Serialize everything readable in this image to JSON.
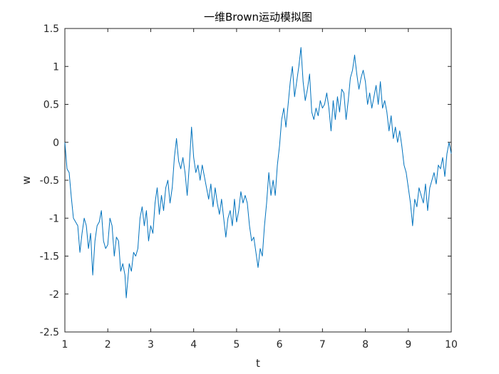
{
  "chart_data": {
    "type": "line",
    "title": "一维Brown运动模拟图",
    "xlabel": "t",
    "ylabel": "w",
    "xlim": [
      1,
      10
    ],
    "ylim": [
      -2.5,
      1.5
    ],
    "xticks": [
      1,
      2,
      3,
      4,
      5,
      6,
      7,
      8,
      9,
      10
    ],
    "yticks": [
      -2.5,
      -2,
      -1.5,
      -1,
      -0.5,
      0,
      0.5,
      1,
      1.5
    ],
    "ytick_labels": [
      "-2.5",
      "-2",
      "-1.5",
      "-1",
      "-0.5",
      "0",
      "0.5",
      "1",
      "1.5"
    ],
    "xtick_labels": [
      "1",
      "2",
      "3",
      "4",
      "5",
      "6",
      "7",
      "8",
      "9",
      "10"
    ],
    "grid": false,
    "series": [
      {
        "color": "#0072BD",
        "points": [
          [
            1.0,
            0.0
          ],
          [
            1.05,
            -0.35
          ],
          [
            1.1,
            -0.4
          ],
          [
            1.15,
            -0.72
          ],
          [
            1.2,
            -1.0
          ],
          [
            1.25,
            -1.05
          ],
          [
            1.3,
            -1.1
          ],
          [
            1.35,
            -1.45
          ],
          [
            1.4,
            -1.2
          ],
          [
            1.45,
            -1.0
          ],
          [
            1.5,
            -1.1
          ],
          [
            1.55,
            -1.4
          ],
          [
            1.6,
            -1.2
          ],
          [
            1.65,
            -1.75
          ],
          [
            1.7,
            -1.3
          ],
          [
            1.75,
            -1.1
          ],
          [
            1.8,
            -1.05
          ],
          [
            1.85,
            -0.9
          ],
          [
            1.9,
            -1.3
          ],
          [
            1.95,
            -1.4
          ],
          [
            2.0,
            -1.35
          ],
          [
            2.05,
            -1.0
          ],
          [
            2.1,
            -1.1
          ],
          [
            2.15,
            -1.5
          ],
          [
            2.2,
            -1.25
          ],
          [
            2.25,
            -1.3
          ],
          [
            2.3,
            -1.7
          ],
          [
            2.35,
            -1.6
          ],
          [
            2.4,
            -1.75
          ],
          [
            2.43,
            -2.05
          ],
          [
            2.5,
            -1.6
          ],
          [
            2.55,
            -1.7
          ],
          [
            2.6,
            -1.45
          ],
          [
            2.65,
            -1.5
          ],
          [
            2.7,
            -1.4
          ],
          [
            2.75,
            -1.0
          ],
          [
            2.8,
            -0.85
          ],
          [
            2.85,
            -1.1
          ],
          [
            2.9,
            -0.9
          ],
          [
            2.95,
            -1.3
          ],
          [
            3.0,
            -1.1
          ],
          [
            3.05,
            -1.2
          ],
          [
            3.1,
            -0.8
          ],
          [
            3.15,
            -0.6
          ],
          [
            3.2,
            -0.95
          ],
          [
            3.25,
            -0.7
          ],
          [
            3.3,
            -0.9
          ],
          [
            3.35,
            -0.6
          ],
          [
            3.4,
            -0.5
          ],
          [
            3.45,
            -0.8
          ],
          [
            3.5,
            -0.6
          ],
          [
            3.55,
            -0.2
          ],
          [
            3.6,
            0.05
          ],
          [
            3.65,
            -0.25
          ],
          [
            3.7,
            -0.35
          ],
          [
            3.75,
            -0.2
          ],
          [
            3.8,
            -0.4
          ],
          [
            3.85,
            -0.7
          ],
          [
            3.9,
            -0.3
          ],
          [
            3.95,
            0.2
          ],
          [
            4.0,
            -0.2
          ],
          [
            4.05,
            -0.4
          ],
          [
            4.1,
            -0.3
          ],
          [
            4.15,
            -0.5
          ],
          [
            4.2,
            -0.3
          ],
          [
            4.25,
            -0.45
          ],
          [
            4.3,
            -0.6
          ],
          [
            4.35,
            -0.75
          ],
          [
            4.4,
            -0.55
          ],
          [
            4.45,
            -0.85
          ],
          [
            4.5,
            -0.6
          ],
          [
            4.55,
            -0.8
          ],
          [
            4.6,
            -0.95
          ],
          [
            4.65,
            -0.75
          ],
          [
            4.7,
            -1.0
          ],
          [
            4.75,
            -1.25
          ],
          [
            4.8,
            -1.0
          ],
          [
            4.85,
            -0.9
          ],
          [
            4.9,
            -1.1
          ],
          [
            4.95,
            -0.75
          ],
          [
            5.0,
            -1.05
          ],
          [
            5.05,
            -0.9
          ],
          [
            5.1,
            -0.65
          ],
          [
            5.15,
            -0.8
          ],
          [
            5.2,
            -0.7
          ],
          [
            5.25,
            -0.8
          ],
          [
            5.3,
            -1.1
          ],
          [
            5.35,
            -1.3
          ],
          [
            5.4,
            -1.25
          ],
          [
            5.45,
            -1.45
          ],
          [
            5.5,
            -1.65
          ],
          [
            5.55,
            -1.4
          ],
          [
            5.6,
            -1.5
          ],
          [
            5.65,
            -1.1
          ],
          [
            5.7,
            -0.8
          ],
          [
            5.75,
            -0.4
          ],
          [
            5.8,
            -0.7
          ],
          [
            5.85,
            -0.5
          ],
          [
            5.9,
            -0.7
          ],
          [
            5.95,
            -0.3
          ],
          [
            6.0,
            -0.05
          ],
          [
            6.05,
            0.3
          ],
          [
            6.1,
            0.45
          ],
          [
            6.15,
            0.2
          ],
          [
            6.2,
            0.5
          ],
          [
            6.25,
            0.8
          ],
          [
            6.3,
            1.0
          ],
          [
            6.35,
            0.6
          ],
          [
            6.4,
            0.8
          ],
          [
            6.45,
            1.0
          ],
          [
            6.5,
            1.25
          ],
          [
            6.55,
            0.8
          ],
          [
            6.6,
            0.55
          ],
          [
            6.65,
            0.7
          ],
          [
            6.7,
            0.9
          ],
          [
            6.75,
            0.4
          ],
          [
            6.8,
            0.3
          ],
          [
            6.85,
            0.45
          ],
          [
            6.9,
            0.35
          ],
          [
            6.95,
            0.55
          ],
          [
            7.0,
            0.45
          ],
          [
            7.05,
            0.5
          ],
          [
            7.1,
            0.65
          ],
          [
            7.15,
            0.45
          ],
          [
            7.2,
            0.15
          ],
          [
            7.25,
            0.55
          ],
          [
            7.3,
            0.3
          ],
          [
            7.35,
            0.6
          ],
          [
            7.4,
            0.4
          ],
          [
            7.45,
            0.7
          ],
          [
            7.5,
            0.65
          ],
          [
            7.55,
            0.3
          ],
          [
            7.6,
            0.55
          ],
          [
            7.65,
            0.85
          ],
          [
            7.7,
            0.95
          ],
          [
            7.75,
            1.15
          ],
          [
            7.8,
            0.9
          ],
          [
            7.85,
            0.7
          ],
          [
            7.9,
            0.85
          ],
          [
            7.95,
            0.95
          ],
          [
            8.0,
            0.8
          ],
          [
            8.05,
            0.5
          ],
          [
            8.1,
            0.65
          ],
          [
            8.15,
            0.45
          ],
          [
            8.2,
            0.6
          ],
          [
            8.25,
            0.75
          ],
          [
            8.3,
            0.5
          ],
          [
            8.35,
            0.8
          ],
          [
            8.4,
            0.45
          ],
          [
            8.45,
            0.55
          ],
          [
            8.5,
            0.4
          ],
          [
            8.55,
            0.15
          ],
          [
            8.6,
            0.35
          ],
          [
            8.65,
            0.05
          ],
          [
            8.7,
            0.2
          ],
          [
            8.75,
            0.0
          ],
          [
            8.8,
            0.15
          ],
          [
            8.85,
            -0.05
          ],
          [
            8.9,
            -0.3
          ],
          [
            8.95,
            -0.4
          ],
          [
            9.0,
            -0.6
          ],
          [
            9.05,
            -0.8
          ],
          [
            9.1,
            -1.1
          ],
          [
            9.15,
            -0.75
          ],
          [
            9.2,
            -0.85
          ],
          [
            9.25,
            -0.6
          ],
          [
            9.3,
            -0.7
          ],
          [
            9.35,
            -0.8
          ],
          [
            9.4,
            -0.55
          ],
          [
            9.45,
            -0.9
          ],
          [
            9.5,
            -0.6
          ],
          [
            9.55,
            -0.5
          ],
          [
            9.6,
            -0.4
          ],
          [
            9.65,
            -0.55
          ],
          [
            9.7,
            -0.3
          ],
          [
            9.75,
            -0.35
          ],
          [
            9.8,
            -0.2
          ],
          [
            9.85,
            -0.45
          ],
          [
            9.9,
            -0.15
          ],
          [
            9.95,
            0.0
          ],
          [
            10.0,
            -0.15
          ]
        ]
      }
    ]
  }
}
